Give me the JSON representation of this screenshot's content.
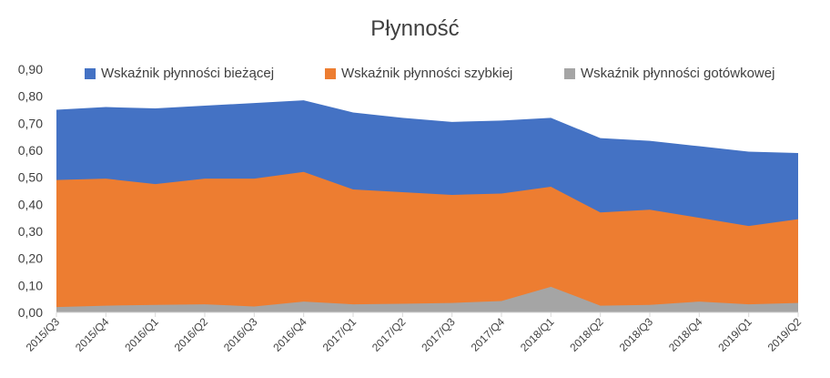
{
  "chart_data": {
    "type": "area",
    "stacked": false,
    "title": "Płynność",
    "xlabel": "",
    "ylabel": "",
    "ylim": [
      0,
      0.9
    ],
    "yticks": [
      "0,00",
      "0,10",
      "0,20",
      "0,30",
      "0,40",
      "0,50",
      "0,60",
      "0,70",
      "0,80",
      "0,90"
    ],
    "grid": false,
    "legend_position": "top",
    "categories": [
      "2015/Q3",
      "2015/Q4",
      "2016/Q1",
      "2016/Q2",
      "2016/Q3",
      "2016/Q4",
      "2017/Q1",
      "2017/Q2",
      "2017/Q3",
      "2017/Q4",
      "2018/Q1",
      "2018/Q2",
      "2018/Q3",
      "2018/Q4",
      "2019/Q1",
      "2019/Q2"
    ],
    "series": [
      {
        "name": "Wskaźnik płynności bieżącej",
        "color": "#4472C4",
        "values": [
          0.75,
          0.76,
          0.755,
          0.765,
          0.775,
          0.785,
          0.74,
          0.72,
          0.705,
          0.71,
          0.72,
          0.645,
          0.635,
          0.615,
          0.595,
          0.59
        ]
      },
      {
        "name": "Wskaźnik płynności szybkiej",
        "color": "#ED7D31",
        "values": [
          0.49,
          0.495,
          0.475,
          0.495,
          0.495,
          0.52,
          0.455,
          0.445,
          0.435,
          0.44,
          0.465,
          0.37,
          0.38,
          0.35,
          0.32,
          0.345
        ]
      },
      {
        "name": "Wskaźnik płynności gotówkowej",
        "color": "#A5A5A5",
        "values": [
          0.02,
          0.025,
          0.028,
          0.03,
          0.022,
          0.04,
          0.03,
          0.032,
          0.035,
          0.042,
          0.095,
          0.025,
          0.028,
          0.04,
          0.03,
          0.035
        ]
      }
    ]
  }
}
